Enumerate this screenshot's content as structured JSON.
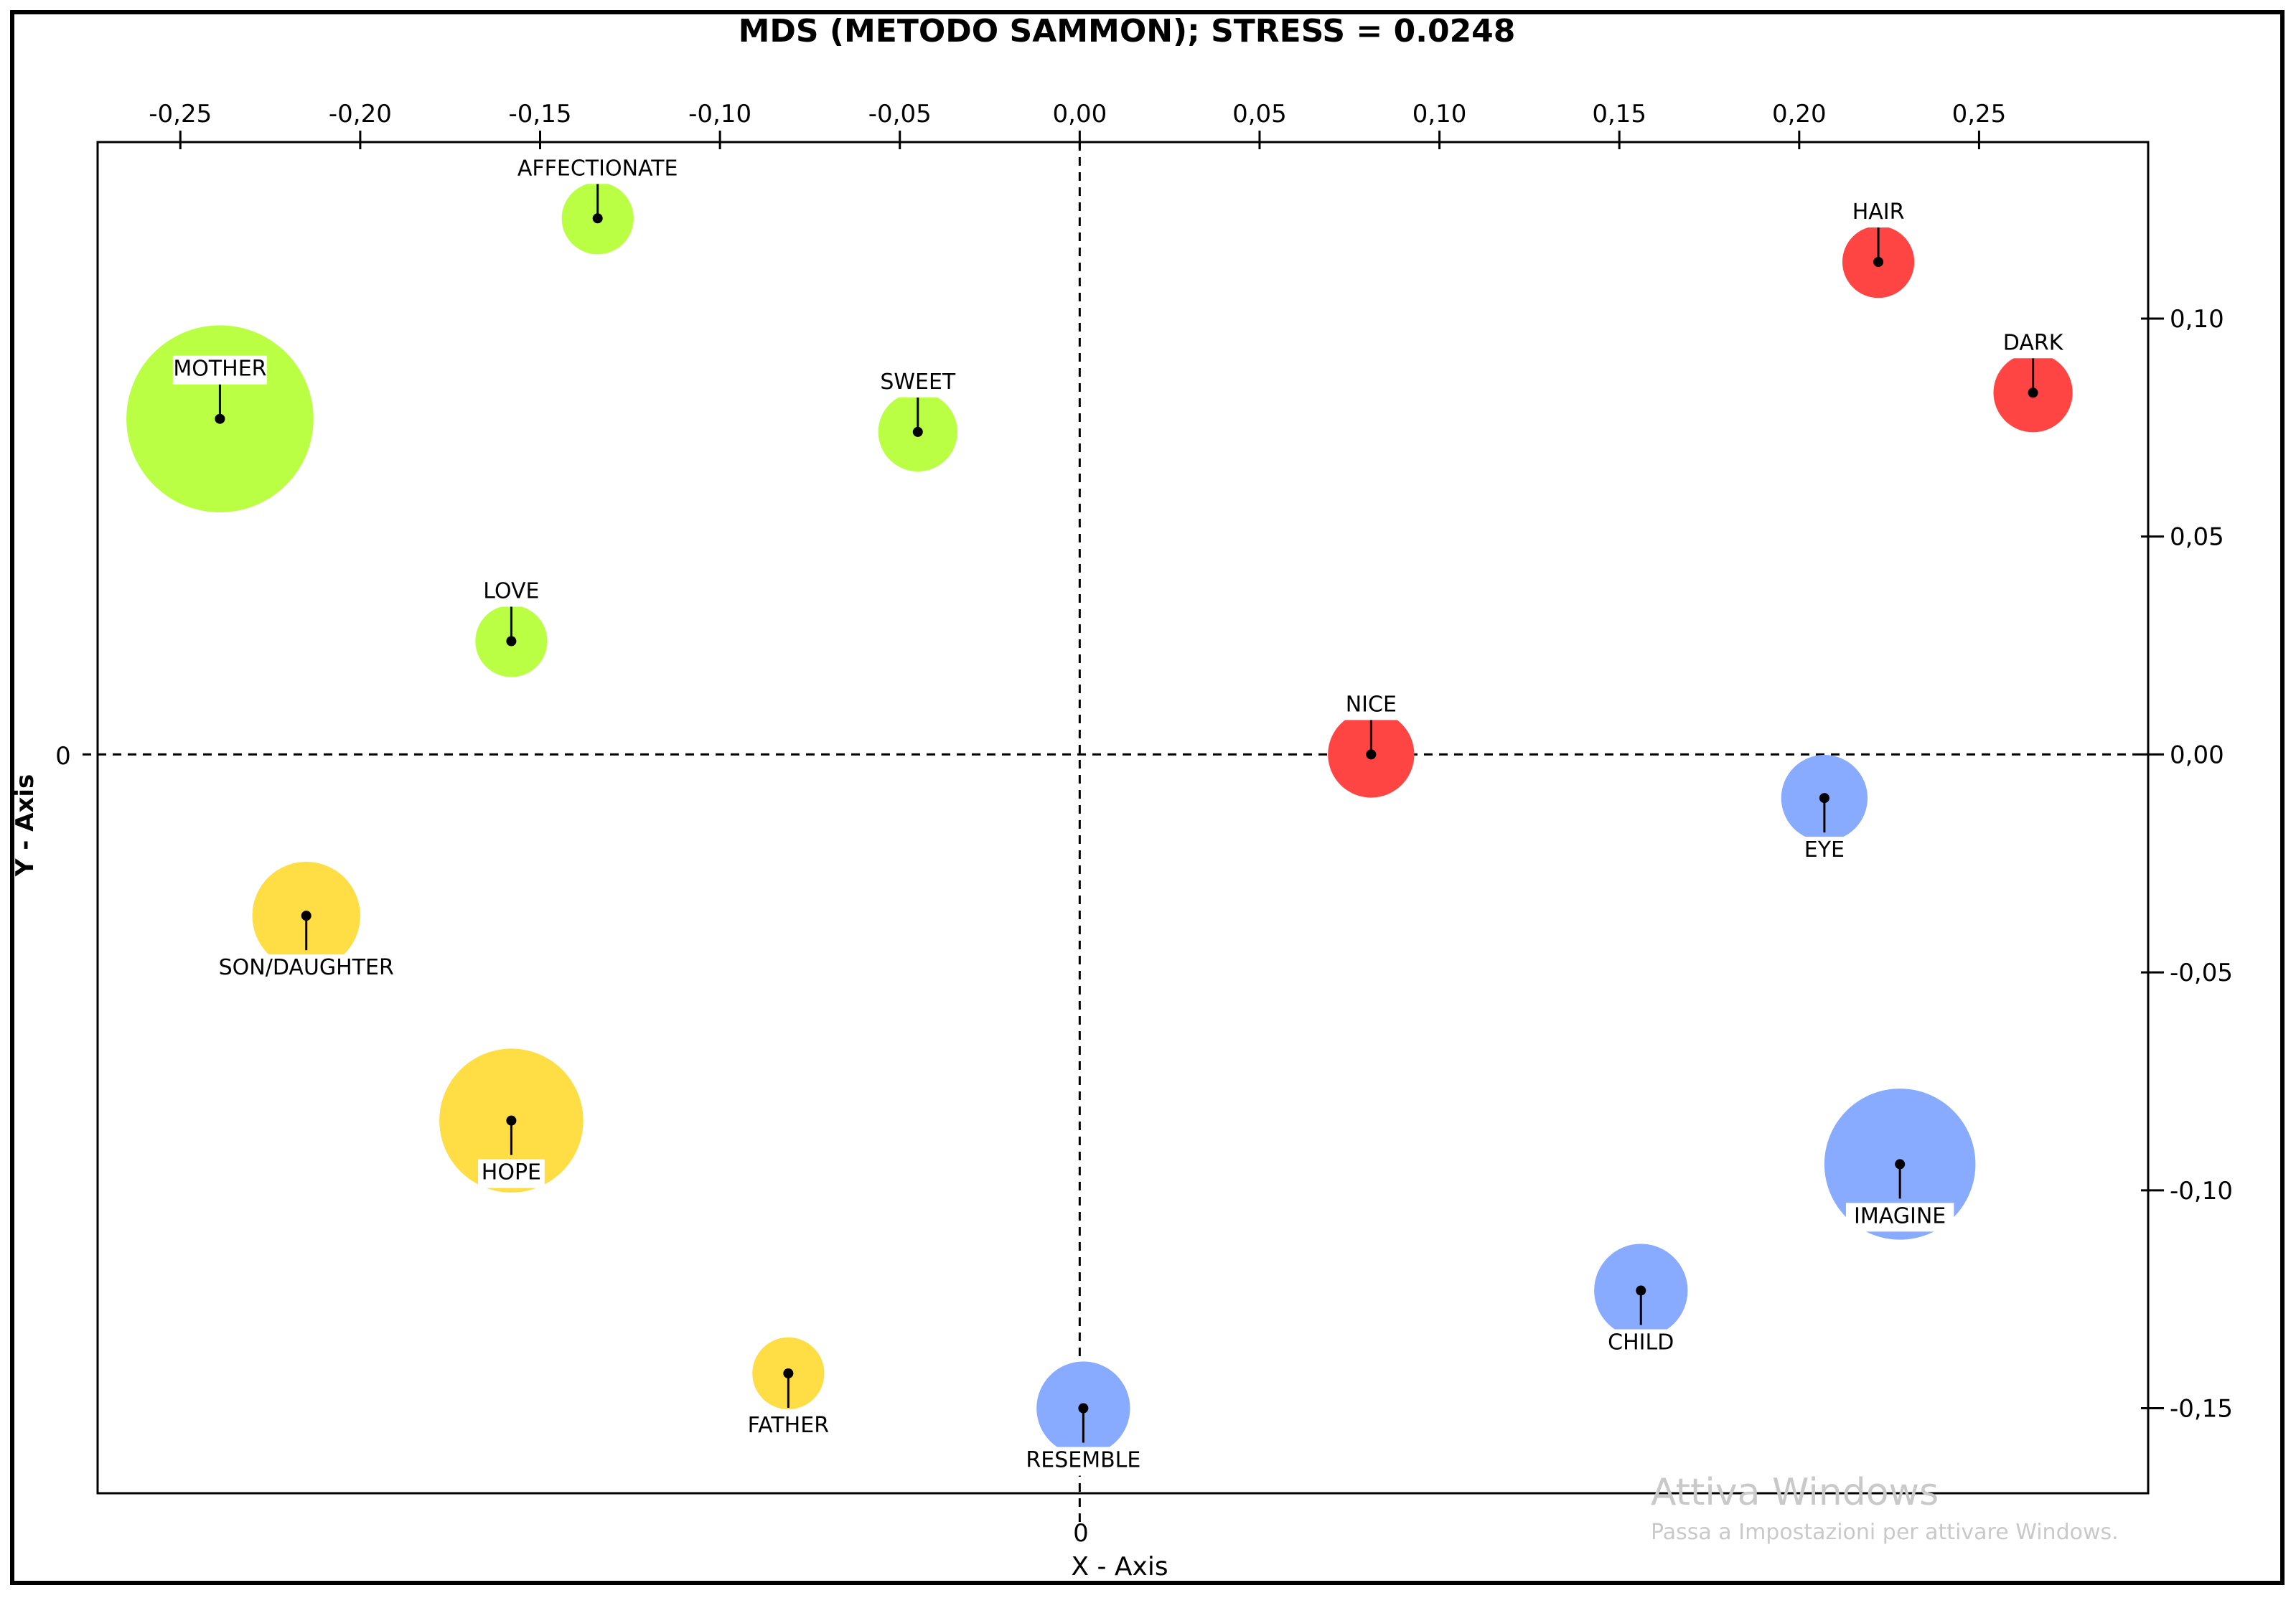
{
  "chart_data": {
    "type": "scatter",
    "title": "MDS (METODO SAMMON); STRESS = 0.0248",
    "xlabel": "X - Axis",
    "ylabel": "Y - Axis",
    "xlim": [
      -0.273,
      0.297
    ],
    "ylim": [
      -0.1695,
      0.1405
    ],
    "x_ticks": [
      {
        "value": -0.25,
        "label": "-0,25"
      },
      {
        "value": -0.2,
        "label": "-0,20"
      },
      {
        "value": -0.15,
        "label": "-0,15"
      },
      {
        "value": -0.1,
        "label": "-0,10"
      },
      {
        "value": -0.05,
        "label": "-0,05"
      },
      {
        "value": 0.0,
        "label": "0,00"
      },
      {
        "value": 0.05,
        "label": "0,05"
      },
      {
        "value": 0.1,
        "label": "0,10"
      },
      {
        "value": 0.15,
        "label": "0,15"
      },
      {
        "value": 0.2,
        "label": "0,20"
      },
      {
        "value": 0.25,
        "label": "0,25"
      }
    ],
    "y_ticks": [
      {
        "value": 0.1,
        "label": "0,10"
      },
      {
        "value": 0.05,
        "label": "0,05"
      },
      {
        "value": 0.0,
        "label": "0,00"
      },
      {
        "value": -0.05,
        "label": "-0,05"
      },
      {
        "value": -0.1,
        "label": "-0,10"
      },
      {
        "value": -0.15,
        "label": "-0,15"
      }
    ],
    "origin_x_label": "0",
    "origin_y_label": "0",
    "colors": {
      "green": "#bbff44",
      "red": "#ff4444",
      "yellow": "#ffdd44",
      "blue": "#88aaff"
    },
    "points": [
      {
        "label": "AFFECTIONATE",
        "x": -0.134,
        "y": 0.123,
        "size": 0.01,
        "group": "green",
        "label_pos": "above"
      },
      {
        "label": "MOTHER",
        "x": -0.239,
        "y": 0.077,
        "size": 0.026,
        "group": "green",
        "label_pos": "above"
      },
      {
        "label": "SWEET",
        "x": -0.045,
        "y": 0.074,
        "size": 0.011,
        "group": "green",
        "label_pos": "above"
      },
      {
        "label": "LOVE",
        "x": -0.158,
        "y": 0.026,
        "size": 0.01,
        "group": "green",
        "label_pos": "above"
      },
      {
        "label": "HAIR",
        "x": 0.222,
        "y": 0.113,
        "size": 0.01,
        "group": "red",
        "label_pos": "above"
      },
      {
        "label": "DARK",
        "x": 0.265,
        "y": 0.083,
        "size": 0.011,
        "group": "red",
        "label_pos": "above"
      },
      {
        "label": "NICE",
        "x": 0.081,
        "y": 0.0,
        "size": 0.012,
        "group": "red",
        "label_pos": "above"
      },
      {
        "label": "SON/DAUGHTER",
        "x": -0.215,
        "y": -0.037,
        "size": 0.015,
        "group": "yellow",
        "label_pos": "below"
      },
      {
        "label": "HOPE",
        "x": -0.158,
        "y": -0.084,
        "size": 0.02,
        "group": "yellow",
        "label_pos": "below"
      },
      {
        "label": "FATHER",
        "x": -0.081,
        "y": -0.142,
        "size": 0.01,
        "group": "yellow",
        "label_pos": "below"
      },
      {
        "label": "EYE",
        "x": 0.207,
        "y": -0.01,
        "size": 0.012,
        "group": "blue",
        "label_pos": "below"
      },
      {
        "label": "IMAGINE",
        "x": 0.228,
        "y": -0.094,
        "size": 0.021,
        "group": "blue",
        "label_pos": "below"
      },
      {
        "label": "CHILD",
        "x": 0.156,
        "y": -0.123,
        "size": 0.013,
        "group": "blue",
        "label_pos": "below"
      },
      {
        "label": "RESEMBLE",
        "x": 0.001,
        "y": -0.15,
        "size": 0.013,
        "group": "blue",
        "label_pos": "below"
      }
    ]
  },
  "watermark": {
    "line1": "Attiva Windows",
    "line2": "Passa a Impostazioni per attivare Windows."
  }
}
